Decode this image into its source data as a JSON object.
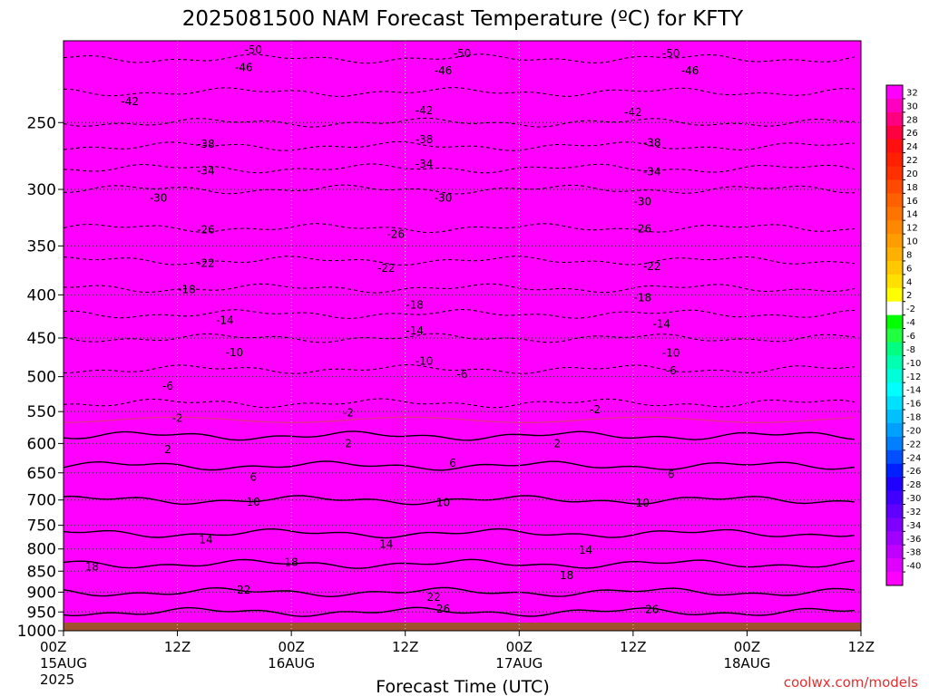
{
  "chart_data": {
    "type": "heatmap",
    "title": "2025081500 NAM Forecast Temperature (ºC) for KFTY",
    "xlabel": "Forecast Time (UTC)",
    "credit": "coolwx.com/models",
    "y_scale": "log-pressure",
    "ylim": [
      1000,
      200
    ],
    "y_ticks": [
      "250",
      "300",
      "350",
      "400",
      "450",
      "500",
      "550",
      "600",
      "650",
      "700",
      "750",
      "800",
      "850",
      "900",
      "950",
      "1000"
    ],
    "x_ticks": [
      {
        "top": "00Z",
        "mid": "15AUG",
        "bot": "2025"
      },
      {
        "top": "12Z",
        "mid": "",
        "bot": ""
      },
      {
        "top": "00Z",
        "mid": "16AUG",
        "bot": ""
      },
      {
        "top": "12Z",
        "mid": "",
        "bot": ""
      },
      {
        "top": "00Z",
        "mid": "17AUG",
        "bot": ""
      },
      {
        "top": "12Z",
        "mid": "",
        "bot": ""
      },
      {
        "top": "00Z",
        "mid": "18AUG",
        "bot": ""
      },
      {
        "top": "12Z",
        "mid": "",
        "bot": ""
      }
    ],
    "xlim_hours": [
      0,
      84
    ],
    "grid": true,
    "ground_below_hPa": 978,
    "colorbar": {
      "labels": [
        "32",
        "30",
        "28",
        "26",
        "24",
        "22",
        "20",
        "18",
        "16",
        "14",
        "12",
        "10",
        "8",
        "6",
        "4",
        "2",
        "-2",
        "-4",
        "-6",
        "-8",
        "-10",
        "-12",
        "-14",
        "-16",
        "-18",
        "-20",
        "-22",
        "-24",
        "-26",
        "-28",
        "-30",
        "-32",
        "-34",
        "-36",
        "-38",
        "-40"
      ],
      "colors": [
        "#ff00ff",
        "#ff00c0",
        "#ff0080",
        "#ff0040",
        "#ff1010",
        "#ff2000",
        "#ff3000",
        "#ff4a00",
        "#ff6000",
        "#ff7400",
        "#ff8800",
        "#ff9c00",
        "#ffb000",
        "#ffc800",
        "#ffe000",
        "#ffff00",
        "#ffffff",
        "#00ff00",
        "#20ff40",
        "#00ff80",
        "#00ffb0",
        "#00ffd8",
        "#00ffff",
        "#00e0ff",
        "#00c0ff",
        "#00a0ff",
        "#0080ff",
        "#0050ff",
        "#0020ff",
        "#2000ff",
        "#4000ff",
        "#6000ff",
        "#8000ff",
        "#a000ff",
        "#c000ff",
        "#e000ff",
        "#ff00ff"
      ]
    },
    "profile": [
      {
        "p": 200,
        "t": -52
      },
      {
        "p": 250,
        "t": -42
      },
      {
        "p": 300,
        "t": -30
      },
      {
        "p": 350,
        "t": -24
      },
      {
        "p": 400,
        "t": -17
      },
      {
        "p": 450,
        "t": -10
      },
      {
        "p": 500,
        "t": -5
      },
      {
        "p": 550,
        "t": -1
      },
      {
        "p": 600,
        "t": 3
      },
      {
        "p": 650,
        "t": 7
      },
      {
        "p": 700,
        "t": 10
      },
      {
        "p": 750,
        "t": 13
      },
      {
        "p": 800,
        "t": 16
      },
      {
        "p": 850,
        "t": 19
      },
      {
        "p": 900,
        "t": 22
      },
      {
        "p": 950,
        "t": 26
      },
      {
        "p": 1000,
        "t": 30
      }
    ],
    "contour_labels": [
      {
        "text": "-50",
        "h": 20,
        "p": 205
      },
      {
        "text": "-50",
        "h": 42,
        "p": 207
      },
      {
        "text": "-50",
        "h": 64,
        "p": 207
      },
      {
        "text": "-46",
        "h": 19,
        "p": 215
      },
      {
        "text": "-46",
        "h": 40,
        "p": 217
      },
      {
        "text": "-46",
        "h": 66,
        "p": 217
      },
      {
        "text": "-42",
        "h": 7,
        "p": 236
      },
      {
        "text": "-42",
        "h": 38,
        "p": 242
      },
      {
        "text": "-42",
        "h": 60,
        "p": 243
      },
      {
        "text": "-38",
        "h": 15,
        "p": 265
      },
      {
        "text": "-38",
        "h": 38,
        "p": 262
      },
      {
        "text": "-38",
        "h": 62,
        "p": 264
      },
      {
        "text": "-34",
        "h": 15,
        "p": 285
      },
      {
        "text": "-34",
        "h": 38,
        "p": 280
      },
      {
        "text": "-34",
        "h": 62,
        "p": 286
      },
      {
        "text": "-30",
        "h": 10,
        "p": 307
      },
      {
        "text": "-30",
        "h": 40,
        "p": 307
      },
      {
        "text": "-30",
        "h": 61,
        "p": 310
      },
      {
        "text": "-26",
        "h": 15,
        "p": 335
      },
      {
        "text": "-26",
        "h": 35,
        "p": 339
      },
      {
        "text": "-26",
        "h": 61,
        "p": 334
      },
      {
        "text": "-22",
        "h": 15,
        "p": 367
      },
      {
        "text": "-22",
        "h": 34,
        "p": 372
      },
      {
        "text": "-22",
        "h": 62,
        "p": 370
      },
      {
        "text": "-18",
        "h": 13,
        "p": 394
      },
      {
        "text": "-18",
        "h": 37,
        "p": 411
      },
      {
        "text": "-18",
        "h": 61,
        "p": 403
      },
      {
        "text": "-14",
        "h": 17,
        "p": 429
      },
      {
        "text": "-14",
        "h": 37,
        "p": 441
      },
      {
        "text": "-14",
        "h": 63,
        "p": 433
      },
      {
        "text": "-10",
        "h": 18,
        "p": 468
      },
      {
        "text": "-10",
        "h": 38,
        "p": 479
      },
      {
        "text": "-10",
        "h": 64,
        "p": 469
      },
      {
        "text": "-6",
        "h": 11,
        "p": 513
      },
      {
        "text": "-6",
        "h": 42,
        "p": 497
      },
      {
        "text": "-6",
        "h": 64,
        "p": 492
      },
      {
        "text": "-2",
        "h": 12,
        "p": 560
      },
      {
        "text": "-2",
        "h": 30,
        "p": 552
      },
      {
        "text": "-2",
        "h": 56,
        "p": 547
      },
      {
        "text": "2",
        "h": 11,
        "p": 610
      },
      {
        "text": "2",
        "h": 30,
        "p": 600
      },
      {
        "text": "2",
        "h": 52,
        "p": 600
      },
      {
        "text": "6",
        "h": 20,
        "p": 658
      },
      {
        "text": "6",
        "h": 41,
        "p": 633
      },
      {
        "text": "6",
        "h": 64,
        "p": 653
      },
      {
        "text": "10",
        "h": 20,
        "p": 704
      },
      {
        "text": "10",
        "h": 40,
        "p": 705
      },
      {
        "text": "10",
        "h": 61,
        "p": 706
      },
      {
        "text": "14",
        "h": 15,
        "p": 780
      },
      {
        "text": "14",
        "h": 34,
        "p": 790
      },
      {
        "text": "14",
        "h": 55,
        "p": 802
      },
      {
        "text": "18",
        "h": 3,
        "p": 840
      },
      {
        "text": "18",
        "h": 24,
        "p": 830
      },
      {
        "text": "18",
        "h": 53,
        "p": 860
      },
      {
        "text": "22",
        "h": 19,
        "p": 895
      },
      {
        "text": "22",
        "h": 39,
        "p": 913
      },
      {
        "text": "26",
        "h": 40,
        "p": 942
      },
      {
        "text": "26",
        "h": 62,
        "p": 943
      }
    ]
  }
}
